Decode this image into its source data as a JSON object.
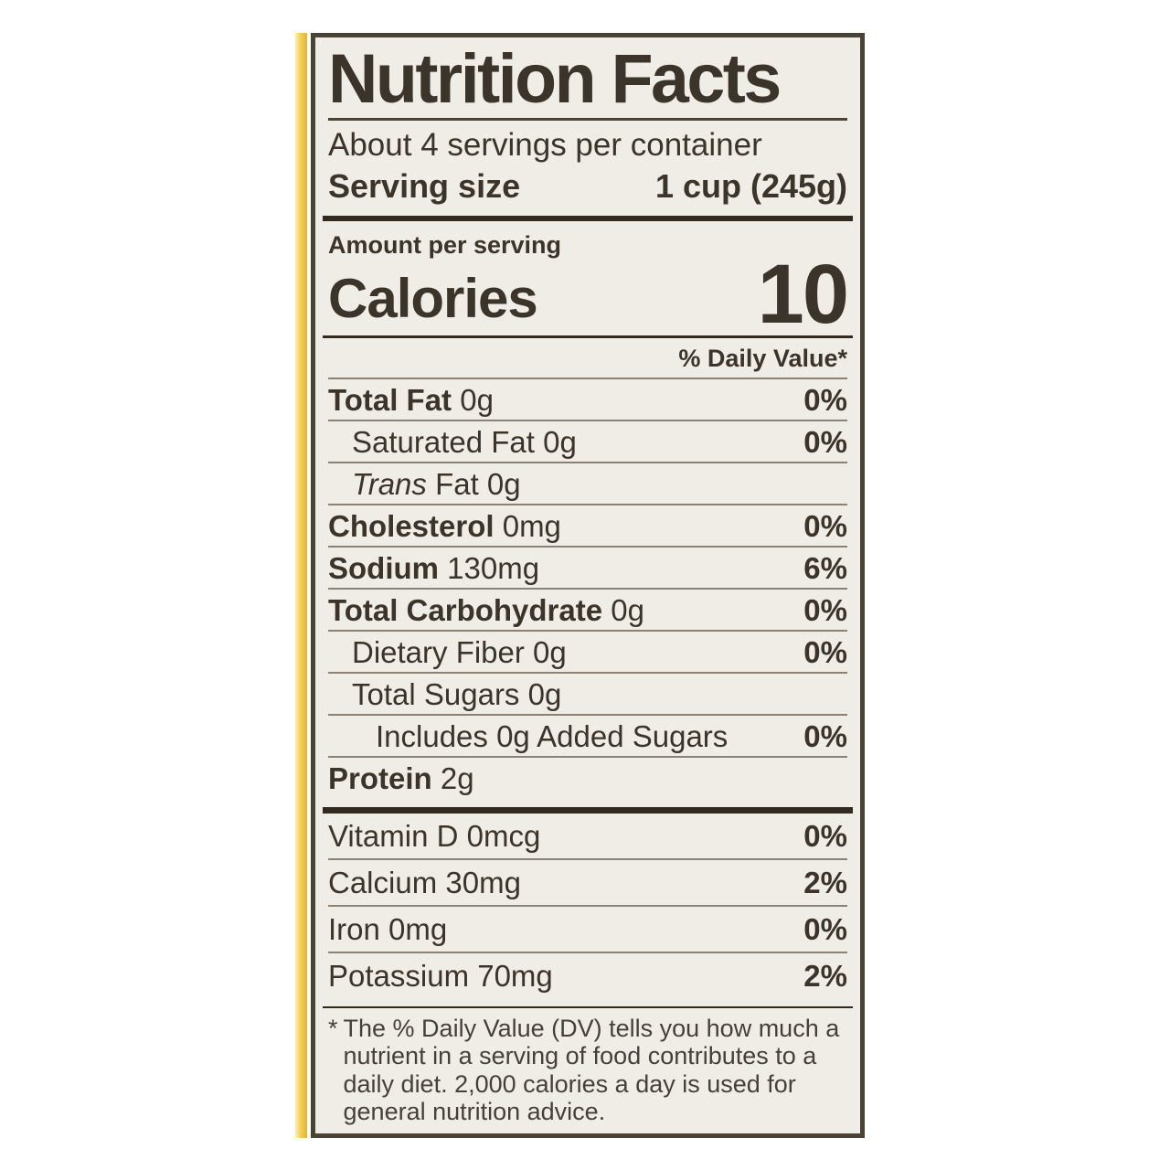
{
  "colors": {
    "label_background": "#f0ede7",
    "ink": "#3b342a",
    "separator_bar": "#312a21",
    "hairline": "#8a8277",
    "package_edge_yellow": "#f3cf55"
  },
  "label": {
    "title": "Nutrition Facts",
    "servings_per_container": "About 4 servings per container",
    "serving_size_label": "Serving size",
    "serving_size_value": "1 cup (245g)",
    "amount_per_serving": "Amount per serving",
    "calories_label": "Calories",
    "calories_value": "10",
    "daily_value_header": "% Daily Value*",
    "nutrients": [
      {
        "name": "Total Fat",
        "amount": "0g",
        "dv": "0%",
        "bold": true,
        "indent": 0
      },
      {
        "name": "Saturated Fat",
        "amount": "0g",
        "dv": "0%",
        "bold": false,
        "indent": 1
      },
      {
        "italic_prefix": "Trans",
        "name": "Fat",
        "amount": "0g",
        "dv": "",
        "bold": false,
        "indent": 1
      },
      {
        "name": "Cholesterol",
        "amount": "0mg",
        "dv": "0%",
        "bold": true,
        "indent": 0
      },
      {
        "name": "Sodium",
        "amount": "130mg",
        "dv": "6%",
        "bold": true,
        "indent": 0
      },
      {
        "name": "Total Carbohydrate",
        "amount": "0g",
        "dv": "0%",
        "bold": true,
        "indent": 0
      },
      {
        "name": "Dietary Fiber",
        "amount": "0g",
        "dv": "0%",
        "bold": false,
        "indent": 1
      },
      {
        "name": "Total Sugars",
        "amount": "0g",
        "dv": "",
        "bold": false,
        "indent": 1
      },
      {
        "name": "Includes 0g Added Sugars",
        "amount": "",
        "dv": "0%",
        "bold": false,
        "indent": 2
      },
      {
        "name": "Protein",
        "amount": "2g",
        "dv": "",
        "bold": true,
        "indent": 0
      }
    ],
    "micronutrients": [
      {
        "name": "Vitamin D",
        "amount": "0mcg",
        "dv": "0%",
        "bold": false,
        "indent": 0
      },
      {
        "name": "Calcium",
        "amount": "30mg",
        "dv": "2%",
        "bold": false,
        "indent": 0
      },
      {
        "name": "Iron",
        "amount": "0mg",
        "dv": "0%",
        "bold": false,
        "indent": 0
      },
      {
        "name": "Potassium",
        "amount": "70mg",
        "dv": "2%",
        "bold": false,
        "indent": 0
      }
    ],
    "footnote_marker": "*",
    "footnote_text": "The % Daily Value (DV) tells you how much a nutrient in a serving of food contributes to a daily diet. 2,000 calories a day is used for general nutrition advice."
  }
}
